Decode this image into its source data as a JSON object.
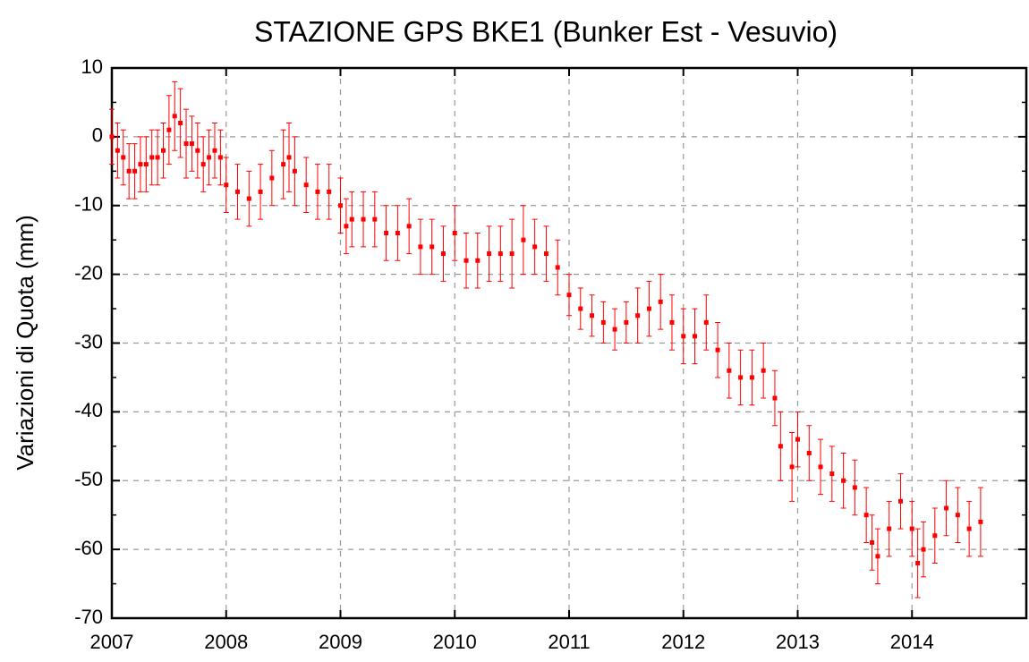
{
  "chart_data": {
    "type": "scatter",
    "title": "STAZIONE GPS BKE1 (Bunker Est - Vesuvio)",
    "y_label": "Variazioni di Quota (mm)",
    "x": [
      2007.0,
      2007.05,
      2007.1,
      2007.15,
      2007.2,
      2007.25,
      2007.3,
      2007.35,
      2007.4,
      2007.45,
      2007.5,
      2007.55,
      2007.6,
      2007.65,
      2007.7,
      2007.75,
      2007.8,
      2007.85,
      2007.9,
      2007.95,
      2008.0,
      2008.1,
      2008.2,
      2008.3,
      2008.4,
      2008.5,
      2008.55,
      2008.6,
      2008.7,
      2008.8,
      2008.9,
      2009.0,
      2009.05,
      2009.1,
      2009.2,
      2009.3,
      2009.4,
      2009.5,
      2009.6,
      2009.7,
      2009.8,
      2009.9,
      2010.0,
      2010.1,
      2010.2,
      2010.3,
      2010.4,
      2010.5,
      2010.6,
      2010.7,
      2010.8,
      2010.9,
      2011.0,
      2011.1,
      2011.2,
      2011.3,
      2011.4,
      2011.5,
      2011.6,
      2011.7,
      2011.8,
      2011.9,
      2012.0,
      2012.1,
      2012.2,
      2012.3,
      2012.4,
      2012.5,
      2012.6,
      2012.7,
      2012.8,
      2012.85,
      2012.95,
      2013.0,
      2013.1,
      2013.2,
      2013.3,
      2013.4,
      2013.5,
      2013.6,
      2013.65,
      2013.7,
      2013.8,
      2013.9,
      2014.0,
      2014.05,
      2014.1,
      2014.2,
      2014.3,
      2014.4,
      2014.5,
      2014.6
    ],
    "series": [
      {
        "name": "BKE1",
        "color": "#ff0000",
        "values": [
          0,
          -2,
          -3,
          -5,
          -5,
          -4,
          -4,
          -3,
          -3,
          -2,
          1,
          3,
          2,
          -1,
          -1,
          -2,
          -4,
          -3,
          -2,
          -3,
          -7,
          -8,
          -9,
          -8,
          -6,
          -4,
          -3,
          -5,
          -7,
          -8,
          -8,
          -10,
          -13,
          -12,
          -12,
          -12,
          -14,
          -14,
          -13,
          -16,
          -16,
          -17,
          -14,
          -18,
          -18,
          -17,
          -17,
          -17,
          -15,
          -16,
          -17,
          -19,
          -23,
          -25,
          -26,
          -27,
          -28,
          -27,
          -26,
          -25,
          -24,
          -27,
          -29,
          -29,
          -27,
          -31,
          -34,
          -35,
          -35,
          -34,
          -38,
          -45,
          -48,
          -44,
          -46,
          -48,
          -49,
          -50,
          -51,
          -55,
          -59,
          -61,
          -57,
          -53,
          -57,
          -62,
          -60,
          -58,
          -54,
          -55,
          -57,
          -56
        ],
        "errors": [
          4,
          4,
          4,
          4,
          4,
          4,
          4,
          4,
          4,
          4,
          5,
          5,
          5,
          5,
          4,
          4,
          4,
          4,
          4,
          4,
          4,
          4,
          4,
          4,
          4,
          5,
          5,
          5,
          4,
          4,
          4,
          4,
          4,
          4,
          4,
          4,
          4,
          4,
          4,
          4,
          4,
          4,
          4,
          4,
          4,
          4,
          4,
          5,
          5,
          4,
          4,
          4,
          3,
          3,
          3,
          3,
          3,
          3,
          4,
          4,
          4,
          4,
          4,
          4,
          4,
          4,
          4,
          4,
          4,
          4,
          4,
          5,
          5,
          4,
          4,
          4,
          4,
          4,
          4,
          4,
          4,
          4,
          4,
          4,
          4,
          5,
          4,
          4,
          4,
          4,
          4,
          5
        ]
      }
    ],
    "xlim": [
      2007,
      2015
    ],
    "ylim": [
      -70,
      10
    ],
    "xticks": [
      2007,
      2008,
      2009,
      2010,
      2011,
      2012,
      2013,
      2014
    ],
    "yticks": [
      -70,
      -60,
      -50,
      -40,
      -30,
      -20,
      -10,
      0,
      10
    ],
    "grid": true
  }
}
